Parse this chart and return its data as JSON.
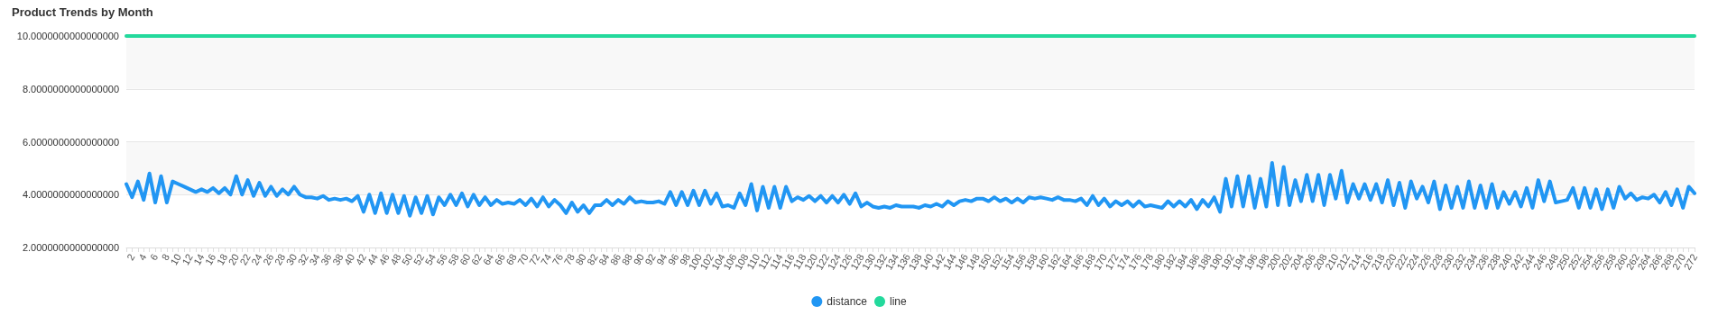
{
  "chart_data": {
    "type": "line",
    "title": "Product Trends by Month",
    "categories": [
      null,
      "2",
      null,
      "4",
      null,
      "6",
      null,
      "8",
      null,
      "10",
      null,
      "12",
      null,
      "14",
      null,
      "16",
      null,
      "18",
      null,
      "20",
      null,
      "22",
      null,
      "24",
      null,
      "26",
      null,
      "28",
      null,
      "30",
      null,
      "32",
      null,
      "34",
      null,
      "36",
      null,
      "38",
      null,
      "40",
      null,
      "42",
      null,
      "44",
      null,
      "46",
      null,
      "48",
      null,
      "50",
      null,
      "52",
      null,
      "54",
      null,
      "56",
      null,
      "58",
      null,
      "60",
      null,
      "62",
      null,
      "64",
      null,
      "66",
      null,
      "68",
      null,
      "70",
      null,
      "72",
      null,
      "74",
      null,
      "76",
      null,
      "78",
      null,
      "80",
      null,
      "82",
      null,
      "84",
      null,
      "86",
      null,
      "88",
      null,
      "90",
      null,
      "92",
      null,
      "94",
      null,
      "96",
      null,
      "98",
      null,
      "100",
      null,
      "102",
      null,
      "104",
      null,
      "106",
      null,
      "108",
      null,
      "110",
      null,
      "112",
      null,
      "114",
      null,
      "116",
      null,
      "118",
      null,
      "120",
      null,
      "122",
      null,
      "124",
      null,
      "126",
      null,
      "128",
      null,
      "130",
      null,
      "132",
      null,
      "134",
      null,
      "136",
      null,
      "138",
      null,
      "140",
      null,
      "142",
      null,
      "144",
      null,
      "146",
      null,
      "148",
      null,
      "150",
      null,
      "152",
      null,
      "154",
      null,
      "156",
      null,
      "158",
      null,
      "160",
      null,
      "162",
      null,
      "164",
      null,
      "166",
      null,
      "168",
      null,
      "170",
      null,
      "172",
      null,
      "174",
      null,
      "176",
      null,
      "178",
      null,
      "180",
      null,
      "182",
      null,
      "184",
      null,
      "186",
      null,
      "188",
      null,
      "190",
      null,
      "192",
      null,
      "194",
      null,
      "196",
      null,
      "198",
      null,
      "200",
      null,
      "202",
      null,
      "204",
      null,
      "206",
      null,
      "208",
      null,
      "210",
      null,
      "212",
      null,
      "214",
      null,
      "216",
      null,
      "218",
      null,
      "220",
      null,
      "222",
      null,
      "224",
      null,
      "226",
      null,
      "228",
      null,
      "230",
      null,
      "232",
      null,
      "234",
      null,
      "236",
      null,
      "238",
      null,
      "240",
      null,
      "242",
      null,
      "244",
      null,
      "246",
      null,
      "248",
      null,
      "250",
      null,
      "252",
      null,
      "254",
      null,
      "256",
      null,
      "258",
      null,
      "260",
      null,
      "262",
      null,
      "264",
      null,
      "266",
      null,
      "268",
      null,
      "270",
      null,
      "272"
    ],
    "series": [
      {
        "name": "distance",
        "color": "#2196f3",
        "values": [
          4.4,
          3.9,
          4.5,
          3.8,
          4.8,
          3.7,
          4.7,
          3.7,
          4.5,
          4.4,
          4.3,
          4.2,
          4.1,
          4.2,
          4.1,
          4.25,
          4.05,
          4.25,
          4.0,
          4.7,
          4.0,
          4.55,
          3.95,
          4.45,
          3.95,
          4.3,
          3.95,
          4.2,
          4.0,
          4.3,
          4.0,
          3.9,
          3.9,
          3.85,
          3.95,
          3.8,
          3.85,
          3.8,
          3.85,
          3.75,
          3.95,
          3.35,
          4.0,
          3.3,
          4.05,
          3.3,
          4.0,
          3.3,
          3.95,
          3.2,
          3.9,
          3.3,
          3.95,
          3.25,
          3.9,
          3.6,
          4.0,
          3.6,
          4.05,
          3.55,
          4.0,
          3.6,
          3.9,
          3.6,
          3.8,
          3.65,
          3.7,
          3.65,
          3.8,
          3.6,
          3.85,
          3.55,
          3.9,
          3.55,
          3.8,
          3.6,
          3.3,
          3.7,
          3.35,
          3.6,
          3.3,
          3.6,
          3.6,
          3.8,
          3.6,
          3.8,
          3.65,
          3.9,
          3.7,
          3.75,
          3.7,
          3.7,
          3.75,
          3.65,
          4.1,
          3.6,
          4.1,
          3.6,
          4.15,
          3.6,
          4.15,
          3.65,
          4.05,
          3.55,
          3.6,
          3.5,
          4.05,
          3.6,
          4.4,
          3.4,
          4.3,
          3.5,
          4.3,
          3.5,
          4.3,
          3.75,
          3.9,
          3.8,
          3.95,
          3.75,
          3.95,
          3.7,
          3.95,
          3.7,
          4.0,
          3.65,
          4.05,
          3.55,
          3.7,
          3.55,
          3.5,
          3.55,
          3.5,
          3.6,
          3.55,
          3.55,
          3.55,
          3.5,
          3.6,
          3.55,
          3.65,
          3.55,
          3.75,
          3.6,
          3.75,
          3.8,
          3.75,
          3.85,
          3.85,
          3.75,
          3.9,
          3.75,
          3.85,
          3.7,
          3.85,
          3.7,
          3.9,
          3.85,
          3.9,
          3.85,
          3.8,
          3.9,
          3.8,
          3.8,
          3.75,
          3.85,
          3.6,
          3.95,
          3.6,
          3.85,
          3.55,
          3.75,
          3.6,
          3.75,
          3.55,
          3.75,
          3.55,
          3.6,
          3.55,
          3.5,
          3.75,
          3.55,
          3.75,
          3.55,
          3.8,
          3.45,
          3.8,
          3.55,
          3.9,
          3.35,
          4.6,
          3.55,
          4.7,
          3.55,
          4.7,
          3.5,
          4.6,
          3.55,
          5.2,
          3.6,
          5.05,
          3.6,
          4.55,
          3.75,
          4.75,
          3.75,
          4.75,
          3.6,
          4.75,
          3.85,
          4.9,
          3.7,
          4.4,
          3.85,
          4.4,
          3.8,
          4.4,
          3.7,
          4.55,
          3.6,
          4.45,
          3.5,
          4.5,
          3.85,
          4.3,
          3.7,
          4.5,
          3.45,
          4.35,
          3.5,
          4.3,
          3.5,
          4.5,
          3.5,
          4.35,
          3.5,
          4.4,
          3.5,
          4.1,
          3.65,
          4.1,
          3.55,
          4.25,
          3.5,
          4.55,
          3.75,
          4.5,
          3.7,
          3.75,
          3.8,
          4.25,
          3.5,
          4.25,
          3.5,
          4.2,
          3.45,
          4.2,
          3.5,
          4.3,
          3.85,
          4.05,
          3.8,
          3.9,
          3.85,
          4.0,
          3.7,
          4.1,
          3.6,
          4.2,
          3.5,
          4.3,
          4.05
        ]
      },
      {
        "name": "line",
        "color": "#23d99c",
        "values": [
          10,
          10,
          10,
          10,
          10,
          10,
          10,
          10,
          10,
          10,
          10,
          10,
          10,
          10,
          10,
          10,
          10,
          10,
          10,
          10,
          10,
          10,
          10,
          10,
          10,
          10,
          10,
          10,
          10,
          10,
          10,
          10,
          10,
          10,
          10,
          10,
          10,
          10,
          10,
          10,
          10,
          10,
          10,
          10,
          10,
          10,
          10,
          10,
          10,
          10,
          10,
          10,
          10,
          10,
          10,
          10,
          10,
          10,
          10,
          10,
          10,
          10,
          10,
          10,
          10,
          10,
          10,
          10,
          10,
          10,
          10,
          10,
          10,
          10,
          10,
          10,
          10,
          10,
          10,
          10,
          10,
          10,
          10,
          10,
          10,
          10,
          10,
          10,
          10,
          10,
          10,
          10,
          10,
          10,
          10,
          10,
          10,
          10,
          10,
          10,
          10,
          10,
          10,
          10,
          10,
          10,
          10,
          10,
          10,
          10,
          10,
          10,
          10,
          10,
          10,
          10,
          10,
          10,
          10,
          10,
          10,
          10,
          10,
          10,
          10,
          10,
          10,
          10,
          10,
          10,
          10,
          10,
          10,
          10,
          10,
          10,
          10,
          10,
          10,
          10,
          10,
          10,
          10,
          10,
          10,
          10,
          10,
          10,
          10,
          10,
          10,
          10,
          10,
          10,
          10,
          10,
          10,
          10,
          10,
          10,
          10,
          10,
          10,
          10,
          10,
          10,
          10,
          10,
          10,
          10,
          10,
          10,
          10,
          10,
          10,
          10,
          10,
          10,
          10,
          10,
          10,
          10,
          10,
          10,
          10,
          10,
          10,
          10,
          10,
          10,
          10,
          10,
          10,
          10,
          10,
          10,
          10,
          10,
          10,
          10,
          10,
          10,
          10,
          10,
          10,
          10,
          10,
          10,
          10,
          10,
          10,
          10,
          10,
          10,
          10,
          10,
          10,
          10,
          10,
          10,
          10,
          10,
          10,
          10,
          10,
          10,
          10,
          10,
          10,
          10,
          10,
          10,
          10,
          10,
          10,
          10,
          10,
          10,
          10,
          10,
          10,
          10,
          10,
          10,
          10,
          10,
          10,
          10,
          10,
          10,
          10,
          10,
          10,
          10,
          10,
          10,
          10,
          10,
          10,
          10,
          10,
          10,
          10,
          10,
          10,
          10,
          10,
          10,
          10,
          10,
          10,
          10
        ]
      }
    ],
    "ylim": [
      2,
      10
    ],
    "yticks": [
      {
        "value": 2,
        "label": "2.0000000000000000"
      },
      {
        "value": 4,
        "label": "4.0000000000000000"
      },
      {
        "value": 6,
        "label": "6.0000000000000000"
      },
      {
        "value": 8,
        "label": "8.0000000000000000"
      },
      {
        "value": 10,
        "label": "10.0000000000000000"
      }
    ],
    "grid": "y",
    "legend": "bottom",
    "marker": "none",
    "line_style": "solid"
  }
}
